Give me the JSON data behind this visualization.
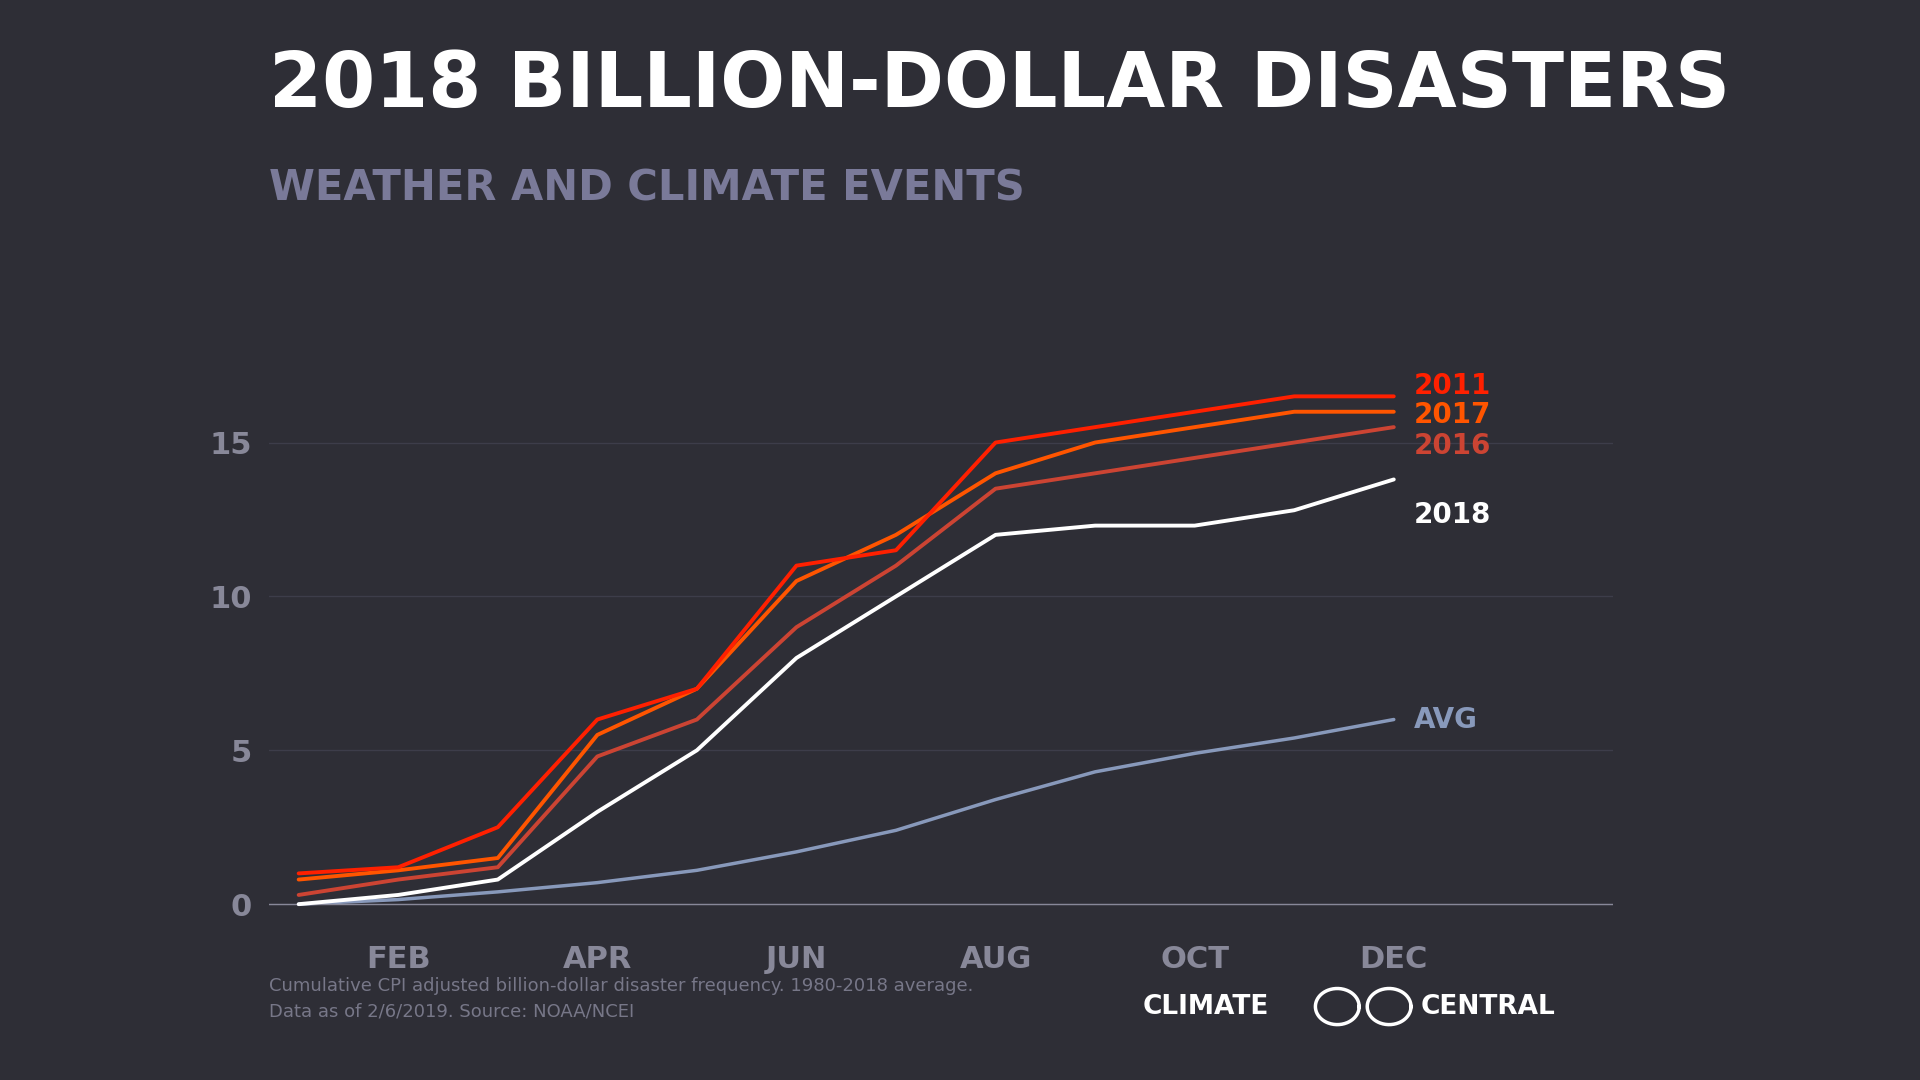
{
  "title": "2018 BILLION-DOLLAR DISASTERS",
  "subtitle": "WEATHER AND CLIMATE EVENTS",
  "footnote_line1": "Cumulative CPI adjusted billion-dollar disaster frequency. 1980-2018 average.",
  "footnote_line2": "Data as of 2/6/2019. Source: NOAA/NCEI",
  "background_color": "#2e2e36",
  "plot_bg_color": "#2e2e36",
  "title_color": "#ffffff",
  "subtitle_color": "#7a7a99",
  "axis_color": "#888899",
  "grid_color": "#3d3d4a",
  "footnote_color": "#777788",
  "month_indices": [
    0,
    1,
    2,
    3,
    4,
    5,
    6,
    7,
    8,
    9,
    10,
    11
  ],
  "series": {
    "2011": {
      "color": "#ff2000",
      "label_color": "#ff2000",
      "values": [
        1.0,
        1.2,
        2.5,
        6.0,
        7.0,
        11.0,
        11.5,
        15.0,
        15.5,
        16.0,
        16.5,
        16.5
      ],
      "zorder": 5,
      "lw": 2.8
    },
    "2017": {
      "color": "#ff5500",
      "label_color": "#ff5500",
      "values": [
        0.8,
        1.1,
        1.5,
        5.5,
        7.0,
        10.5,
        12.0,
        14.0,
        15.0,
        15.5,
        16.0,
        16.0
      ],
      "zorder": 4,
      "lw": 2.8
    },
    "2016": {
      "color": "#cc4433",
      "label_color": "#cc4433",
      "values": [
        0.3,
        0.8,
        1.2,
        4.8,
        6.0,
        9.0,
        11.0,
        13.5,
        14.0,
        14.5,
        15.0,
        15.5
      ],
      "zorder": 3,
      "lw": 2.8
    },
    "2018": {
      "color": "#ffffff",
      "label_color": "#ffffff",
      "values": [
        0.0,
        0.3,
        0.8,
        3.0,
        5.0,
        8.0,
        10.0,
        12.0,
        12.3,
        12.3,
        12.8,
        13.8
      ],
      "zorder": 2,
      "lw": 2.8
    },
    "AVG": {
      "color": "#8899bb",
      "label_color": "#8899bb",
      "values": [
        0.0,
        0.15,
        0.4,
        0.7,
        1.1,
        1.7,
        2.4,
        3.4,
        4.3,
        4.9,
        5.4,
        6.0
      ],
      "zorder": 1,
      "lw": 2.5
    }
  },
  "xtick_labels": [
    "FEB",
    "APR",
    "JUN",
    "AUG",
    "OCT",
    "DEC"
  ],
  "xtick_positions": [
    1,
    3,
    5,
    7,
    9,
    11
  ],
  "ytick_labels": [
    "0",
    "5",
    "10",
    "15"
  ],
  "ytick_positions": [
    0,
    5,
    10,
    15
  ],
  "ylim": [
    -0.8,
    18.5
  ],
  "xlim": [
    -0.3,
    13.2
  ],
  "label_fontsize": 20,
  "title_fontsize": 55,
  "subtitle_fontsize": 30,
  "tick_fontsize": 22,
  "footnote_fontsize": 13,
  "logo_fontsize": 19
}
